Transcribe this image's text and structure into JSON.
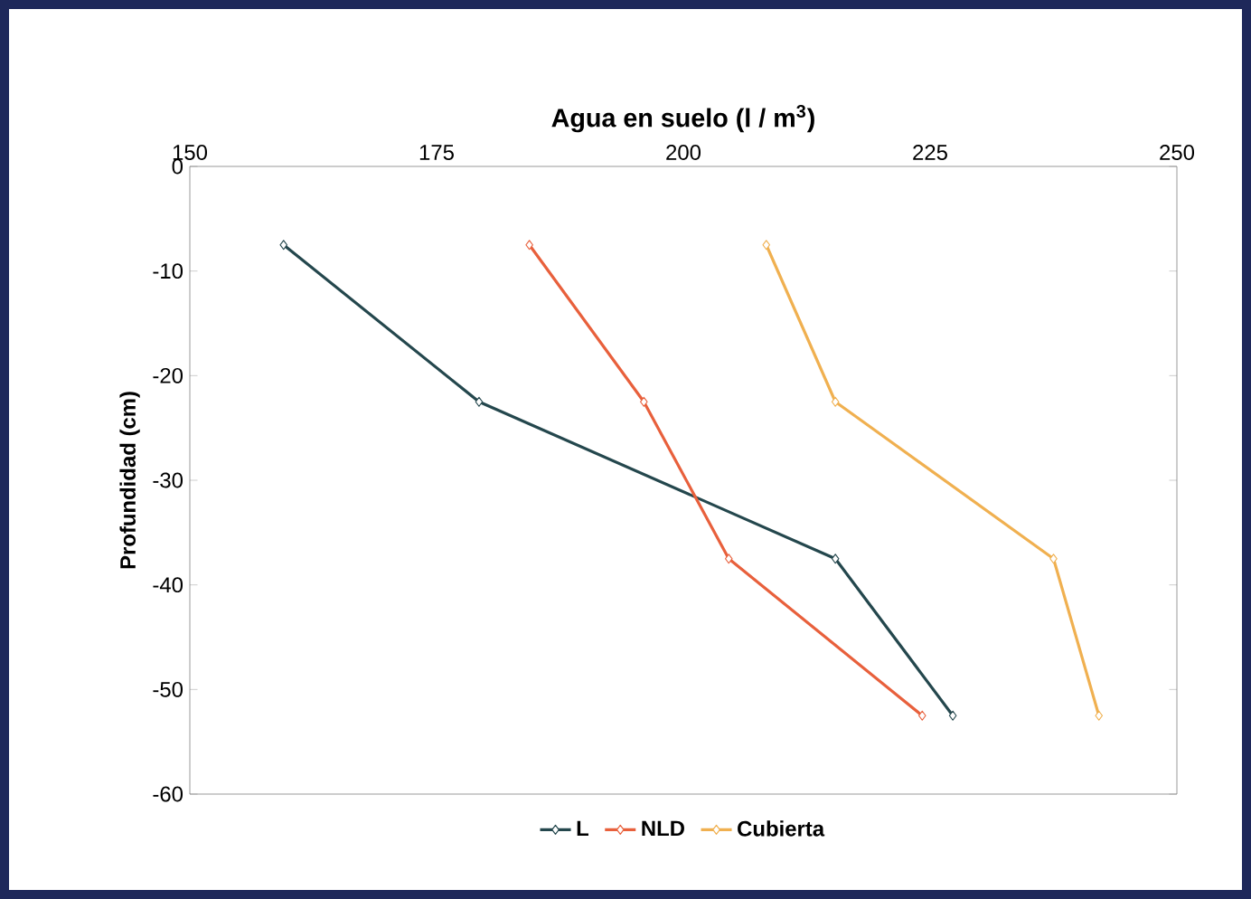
{
  "chart_data": {
    "type": "line",
    "xlabel": "Agua en suelo (l / m$^{3}$)",
    "ylabel": "Profundidad (cm)",
    "xlim": [
      150,
      250
    ],
    "xticks": [
      150,
      175,
      200,
      225,
      250
    ],
    "ylim": [
      -60,
      0
    ],
    "yticks": [
      -60,
      -50,
      -40,
      -30,
      -20,
      -10,
      0
    ],
    "series": [
      {
        "name": "L",
        "color": "#24474d",
        "x": [
          159.5,
          179.3,
          215.4,
          227.3
        ],
        "values": [
          -7.5,
          -22.5,
          -37.5,
          -52.5
        ]
      },
      {
        "name": "NLD",
        "color": "#e8603c",
        "x": [
          184.4,
          196.0,
          204.6,
          224.2
        ],
        "values": [
          -7.5,
          -22.5,
          -37.5,
          -52.5
        ]
      },
      {
        "name": "Cubierta",
        "color": "#f0b050",
        "x": [
          208.4,
          215.4,
          237.5,
          242.1
        ],
        "values": [
          -7.5,
          -22.5,
          -37.5,
          -52.5
        ]
      }
    ],
    "marker": "diamond",
    "legend": "bottom",
    "grid": false
  }
}
